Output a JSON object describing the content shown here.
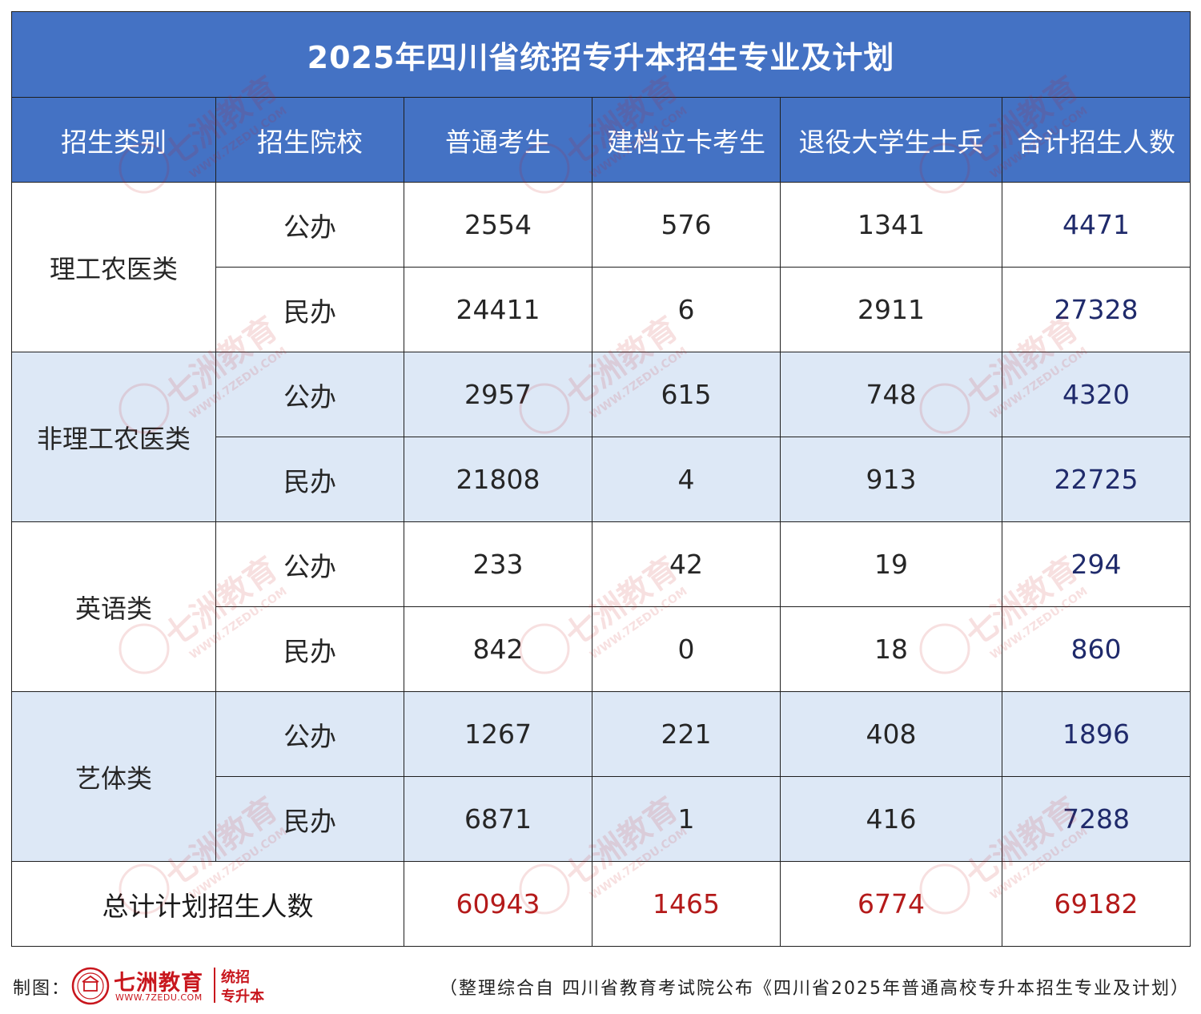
{
  "title": "2025年四川省统招专升本招生专业及计划",
  "headers": [
    "招生类别",
    "招生院校",
    "普通考生",
    "建档立卡考生",
    "退役大学生士兵",
    "合计招生人数"
  ],
  "categories": [
    {
      "name": "理工农医类",
      "rows": [
        {
          "school": "公办",
          "regular": "2554",
          "poverty": "576",
          "veteran": "1341",
          "total": "4471"
        },
        {
          "school": "民办",
          "regular": "24411",
          "poverty": "6",
          "veteran": "2911",
          "total": "27328"
        }
      ]
    },
    {
      "name": "非理工农医类",
      "rows": [
        {
          "school": "公办",
          "regular": "2957",
          "poverty": "615",
          "veteran": "748",
          "total": "4320"
        },
        {
          "school": "民办",
          "regular": "21808",
          "poverty": "4",
          "veteran": "913",
          "total": "22725"
        }
      ]
    },
    {
      "name": "英语类",
      "rows": [
        {
          "school": "公办",
          "regular": "233",
          "poverty": "42",
          "veteran": "19",
          "total": "294"
        },
        {
          "school": "民办",
          "regular": "842",
          "poverty": "0",
          "veteran": "18",
          "total": "860"
        }
      ]
    },
    {
      "name": "艺体类",
      "rows": [
        {
          "school": "公办",
          "regular": "1267",
          "poverty": "221",
          "veteran": "408",
          "total": "1896"
        },
        {
          "school": "民办",
          "regular": "6871",
          "poverty": "1",
          "veteran": "416",
          "total": "7288"
        }
      ]
    }
  ],
  "grand_total": {
    "label": "总计计划招生人数",
    "regular": "60943",
    "poverty": "1465",
    "veteran": "6774",
    "total": "69182"
  },
  "footer": {
    "maker_label": "制图：",
    "logo_name": "七洲教育",
    "logo_url": "WWW.7ZEDU.COM",
    "logo_tag_line1": "统招",
    "logo_tag_line2": "专升本",
    "source": "（整理综合自 四川省教育考试院公布《四川省2025年普通高校专升本招生专业及计划）"
  },
  "watermark": {
    "name": "七洲教育",
    "url": "WWW.7ZEDU.COM",
    "tag": "统招专升本"
  },
  "colors": {
    "header_bg": "#4472c4",
    "shade_bg": "#dde8f6",
    "total_text": "#1f2a6b",
    "grand_total_text": "#b41a1a",
    "brand": "#c8161d"
  }
}
